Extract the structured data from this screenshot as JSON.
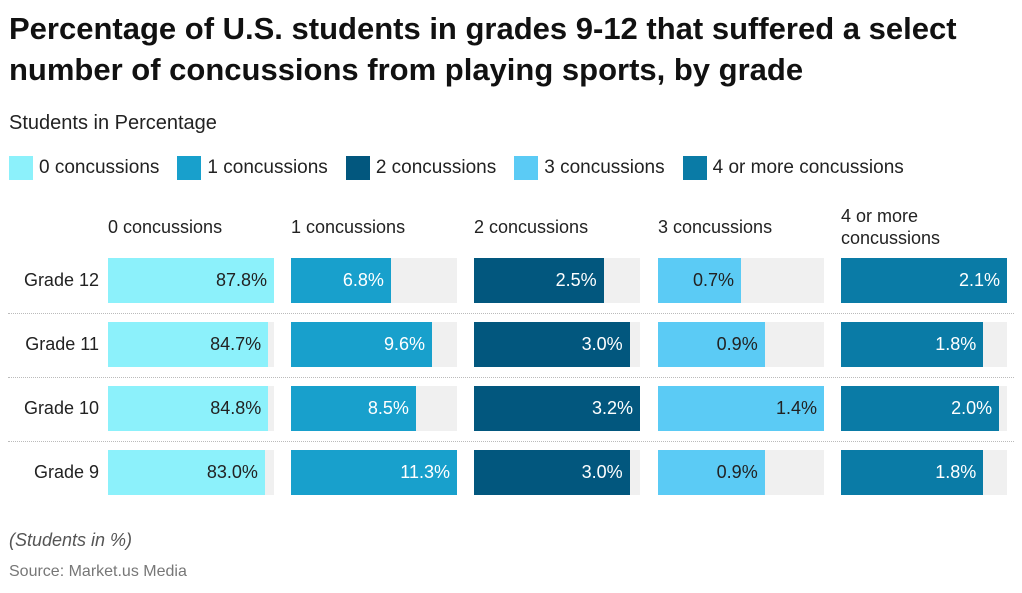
{
  "chart_data": {
    "type": "bar",
    "title": "Percentage of U.S. students in grades 9-12 that suffered a select number of concussions from playing sports, by grade",
    "subtitle": "Students in Percentage",
    "categories": [
      "Grade 12",
      "Grade 11",
      "Grade 10",
      "Grade 9"
    ],
    "series": [
      {
        "name": "0 concussions",
        "color": "#8cf1fb",
        "values": [
          87.8,
          84.7,
          84.8,
          83.0
        ],
        "labels": [
          "87.8%",
          "84.7%",
          "84.8%",
          "83.0%"
        ]
      },
      {
        "name": "1 concussions",
        "color": "#18a0cc",
        "values": [
          6.8,
          9.6,
          8.5,
          11.3
        ],
        "labels": [
          "6.8%",
          "9.6%",
          "8.5%",
          "11.3%"
        ]
      },
      {
        "name": "2 concussions",
        "color": "#02577e",
        "values": [
          2.5,
          3.0,
          3.2,
          3.0
        ],
        "labels": [
          "2.5%",
          "3.0%",
          "3.2%",
          "3.0%"
        ]
      },
      {
        "name": "3 concussions",
        "color": "#5bcbf5",
        "values": [
          0.7,
          0.9,
          1.4,
          0.9
        ],
        "labels": [
          "0.7%",
          "0.9%",
          "1.4%",
          "0.9%"
        ]
      },
      {
        "name": "4 or more concussions",
        "color": "#0a7ba6",
        "values": [
          2.1,
          1.8,
          2.0,
          1.8
        ],
        "labels": [
          "2.1%",
          "1.8%",
          "2.0%",
          "1.8%"
        ]
      }
    ],
    "legend": "top",
    "note": "(Students in %)",
    "source": "Source: Market.us Media"
  }
}
